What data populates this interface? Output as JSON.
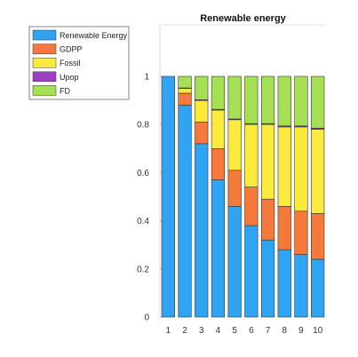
{
  "chart_data": {
    "type": "bar",
    "stacked": true,
    "title": "Renewable energy",
    "xlabel": "",
    "ylabel": "",
    "categories": [
      "1",
      "2",
      "3",
      "4",
      "5",
      "6",
      "7",
      "8",
      "9",
      "10"
    ],
    "ylim": [
      0,
      1
    ],
    "yticks": [
      "0",
      "0.2",
      "0.4",
      "0.6",
      "0.8",
      "1"
    ],
    "grid": false,
    "legend_position": "top-left",
    "series": [
      {
        "name": "Renewable Energy",
        "color": "#2fa4f2",
        "values": [
          1.0,
          0.88,
          0.72,
          0.57,
          0.46,
          0.38,
          0.32,
          0.28,
          0.26,
          0.24
        ]
      },
      {
        "name": "GDPP",
        "color": "#f5793a",
        "values": [
          0.0,
          0.05,
          0.09,
          0.13,
          0.15,
          0.16,
          0.17,
          0.18,
          0.18,
          0.19
        ]
      },
      {
        "name": "Fossil",
        "color": "#f9ea3c",
        "values": [
          0.0,
          0.02,
          0.09,
          0.16,
          0.21,
          0.26,
          0.31,
          0.33,
          0.35,
          0.35
        ]
      },
      {
        "name": "Upop",
        "color": "#9b3fc4",
        "values": [
          0.0,
          0.002,
          0.003,
          0.003,
          0.003,
          0.004,
          0.004,
          0.004,
          0.004,
          0.005
        ]
      },
      {
        "name": "FD",
        "color": "#a5e054",
        "values": [
          0.0,
          0.048,
          0.097,
          0.137,
          0.177,
          0.196,
          0.196,
          0.206,
          0.206,
          0.215
        ]
      }
    ]
  }
}
